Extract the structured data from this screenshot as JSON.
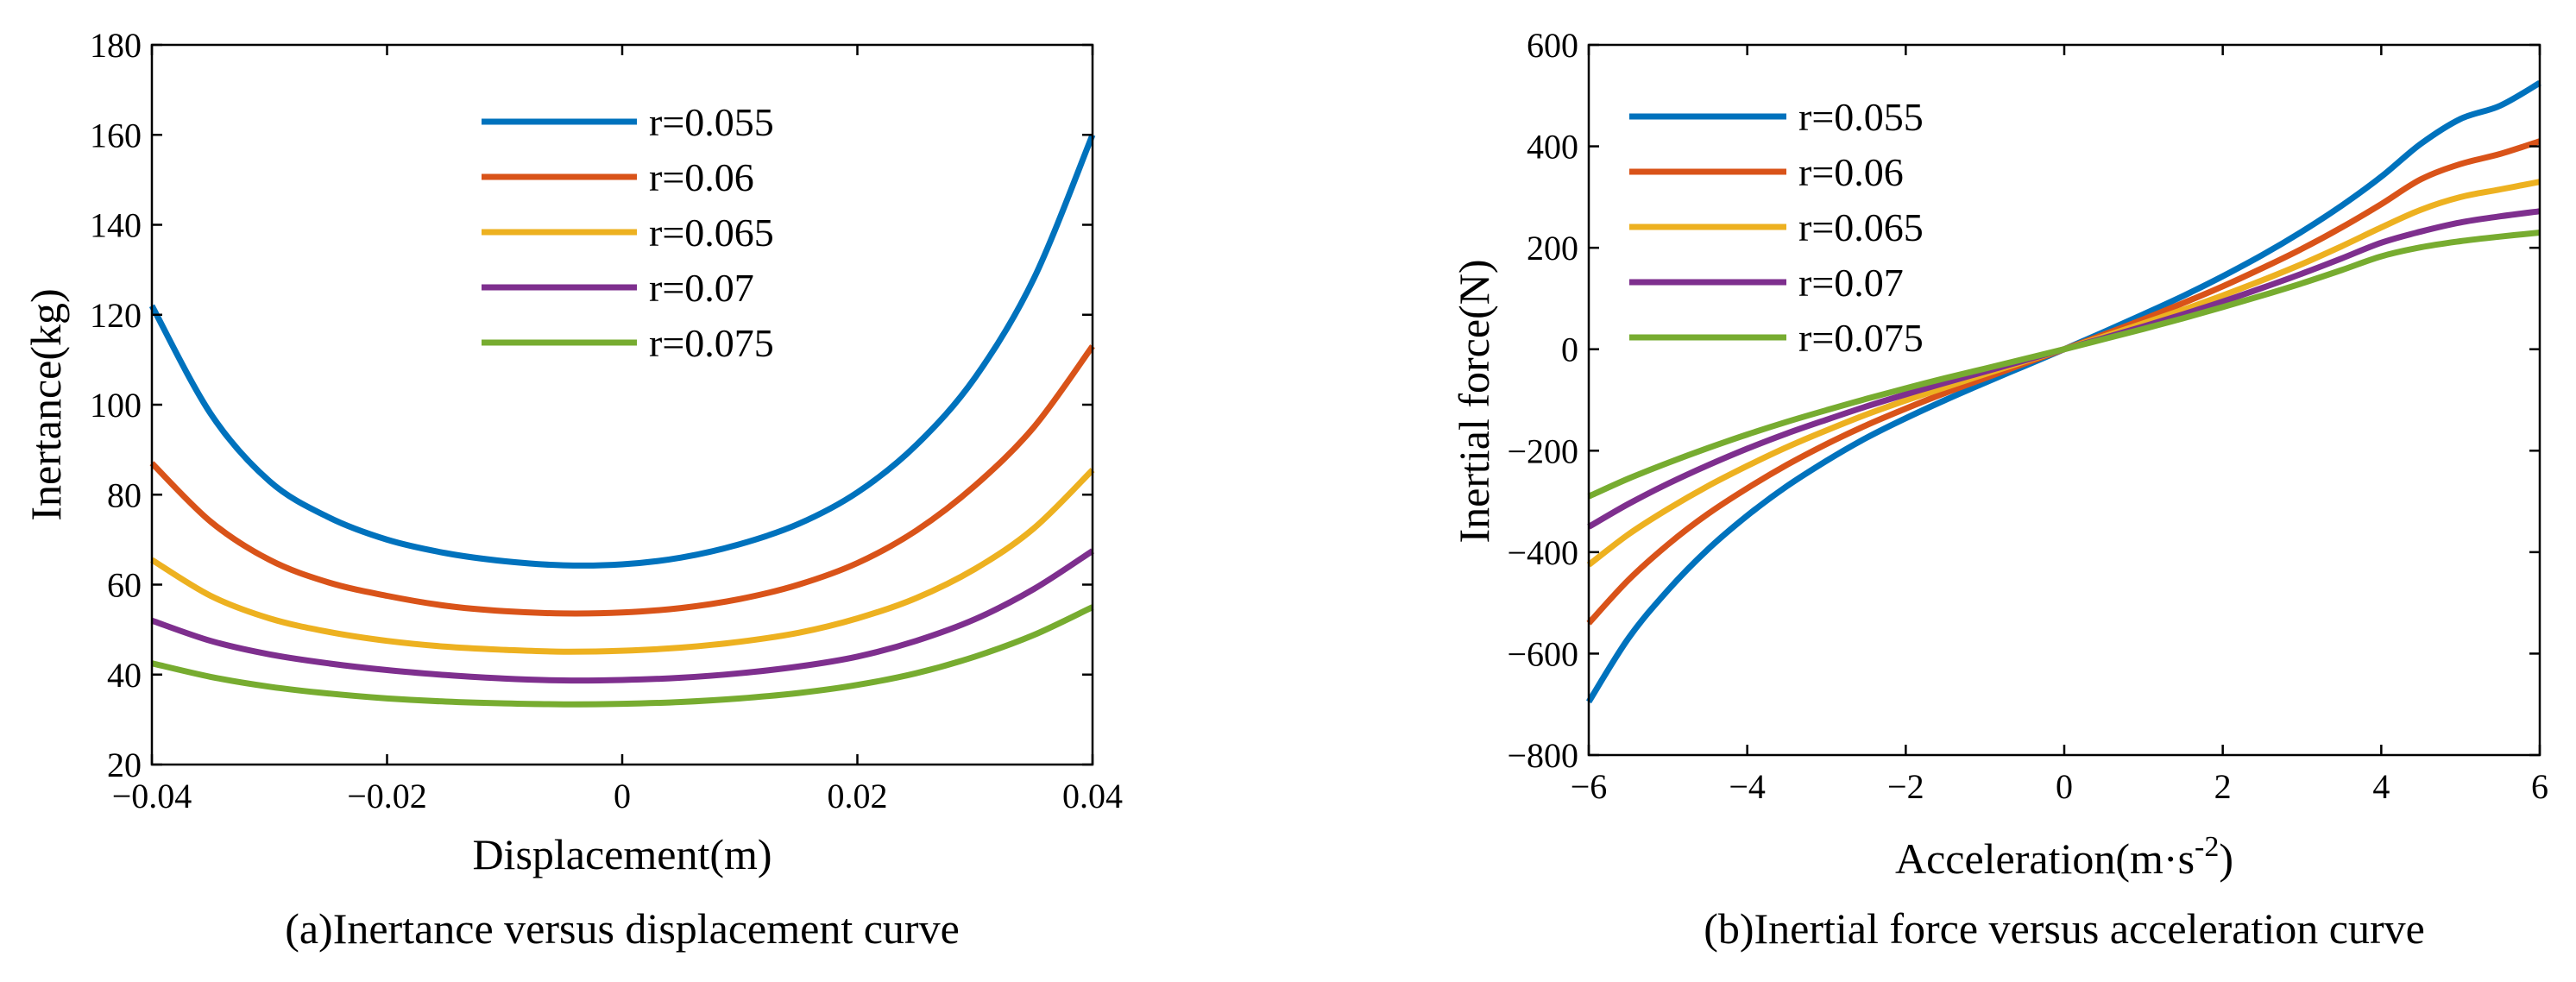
{
  "chart_data": [
    {
      "type": "line",
      "title": "",
      "caption": "(a)Inertance versus displacement curve",
      "xlabel": "Displacement(m)",
      "ylabel": "Inertance(kg)",
      "xlim": [
        -0.04,
        0.04
      ],
      "ylim": [
        20,
        180
      ],
      "xticks": [
        -0.04,
        -0.02,
        0,
        0.02,
        0.04
      ],
      "xtick_labels": [
        "−0.04",
        "−0.02",
        "0",
        "0.02",
        "0.04"
      ],
      "yticks": [
        20,
        40,
        60,
        80,
        100,
        120,
        140,
        160,
        180
      ],
      "ytick_labels": [
        "20",
        "40",
        "60",
        "80",
        "100",
        "120",
        "140",
        "160",
        "180"
      ],
      "legend_position": "top-center",
      "x": [
        -0.04,
        -0.035,
        -0.03,
        -0.025,
        -0.02,
        -0.015,
        -0.01,
        -0.005,
        0,
        0.005,
        0.01,
        0.015,
        0.02,
        0.025,
        0.03,
        0.035,
        0.04
      ],
      "series": [
        {
          "name": "r=0.055",
          "color": "#0072BD",
          "values": [
            122,
            98,
            83,
            75,
            70,
            67,
            65.2,
            64.3,
            64.5,
            66,
            69,
            73.5,
            80.5,
            91,
            106,
            128,
            160
          ]
        },
        {
          "name": "r=0.06",
          "color": "#D95319",
          "values": [
            87,
            74,
            65.5,
            60.5,
            57.5,
            55.3,
            54.1,
            53.6,
            53.8,
            54.8,
            56.8,
            60,
            64.8,
            72,
            82,
            95,
            113
          ]
        },
        {
          "name": "r=0.065",
          "color": "#EDB120",
          "values": [
            65.5,
            57.5,
            52.5,
            49.5,
            47.5,
            46.2,
            45.5,
            45.1,
            45.3,
            46,
            47.3,
            49.3,
            52.5,
            57,
            63.5,
            72.5,
            85.5
          ]
        },
        {
          "name": "r=0.07",
          "color": "#7E2F8E",
          "values": [
            52,
            47.5,
            44.5,
            42.5,
            41,
            39.9,
            39.1,
            38.7,
            38.8,
            39.3,
            40.3,
            41.8,
            44,
            47.5,
            52.3,
            59,
            67.5
          ]
        },
        {
          "name": "r=0.075",
          "color": "#77AC30",
          "values": [
            42.5,
            39.5,
            37.3,
            35.8,
            34.7,
            34,
            33.6,
            33.4,
            33.5,
            33.9,
            34.7,
            35.9,
            37.7,
            40.3,
            44,
            48.8,
            55
          ]
        }
      ]
    },
    {
      "type": "line",
      "title": "",
      "caption": "(b)Inertial force versus acceleration curve",
      "xlabel": "Acceleration(m·s",
      "xlabel_sup": "-2",
      "xlabel_end": ")",
      "ylabel": "Inertial force(N)",
      "xlim": [
        -6,
        6
      ],
      "ylim": [
        -800,
        600
      ],
      "xticks": [
        -6,
        -4,
        -2,
        0,
        2,
        4,
        6
      ],
      "xtick_labels": [
        "−6",
        "−4",
        "−2",
        "0",
        "2",
        "4",
        "6"
      ],
      "yticks": [
        -800,
        -600,
        -400,
        -200,
        0,
        200,
        400,
        600
      ],
      "ytick_labels": [
        "−800",
        "−600",
        "−400",
        "−200",
        "0",
        "200",
        "400",
        "600"
      ],
      "legend_position": "top-left",
      "x": [
        -6,
        -5.5,
        -5,
        -4.5,
        -4,
        -3.5,
        -3,
        -2.5,
        -2,
        -1.5,
        -1,
        -0.5,
        0,
        0.5,
        1,
        1.5,
        2,
        2.5,
        3,
        3.5,
        4,
        4.5,
        5,
        5.5,
        6
      ],
      "series": [
        {
          "name": "r=0.055",
          "color": "#0072BD",
          "values": [
            -695,
            -570,
            -475,
            -395,
            -328,
            -270,
            -220,
            -175,
            -136,
            -100,
            -66,
            -33,
            0,
            34,
            69,
            105,
            144,
            186,
            232,
            283,
            340,
            405,
            454,
            480,
            525
          ]
        },
        {
          "name": "r=0.06",
          "color": "#D95319",
          "values": [
            -540,
            -455,
            -385,
            -325,
            -274,
            -228,
            -187,
            -150,
            -117,
            -86,
            -57,
            -28,
            0,
            29,
            59,
            91,
            124,
            160,
            198,
            240,
            286,
            335,
            365,
            385,
            410
          ]
        },
        {
          "name": "r=0.065",
          "color": "#EDB120",
          "values": [
            -425,
            -365,
            -315,
            -270,
            -230,
            -193,
            -160,
            -129,
            -101,
            -75,
            -49,
            -24,
            0,
            25,
            51,
            78,
            106,
            136,
            168,
            203,
            240,
            275,
            300,
            315,
            330
          ]
        },
        {
          "name": "r=0.07",
          "color": "#7E2F8E",
          "values": [
            -350,
            -305,
            -265,
            -229,
            -196,
            -166,
            -139,
            -113,
            -89,
            -66,
            -44,
            -22,
            0,
            22,
            45,
            69,
            94,
            121,
            149,
            179,
            210,
            232,
            250,
            262,
            272
          ]
        },
        {
          "name": "r=0.075",
          "color": "#77AC30",
          "values": [
            -290,
            -255,
            -224,
            -195,
            -168,
            -143,
            -120,
            -98,
            -77,
            -57,
            -38,
            -19,
            0,
            20,
            40,
            61,
            83,
            106,
            130,
            156,
            183,
            201,
            213,
            222,
            230
          ]
        }
      ]
    }
  ]
}
